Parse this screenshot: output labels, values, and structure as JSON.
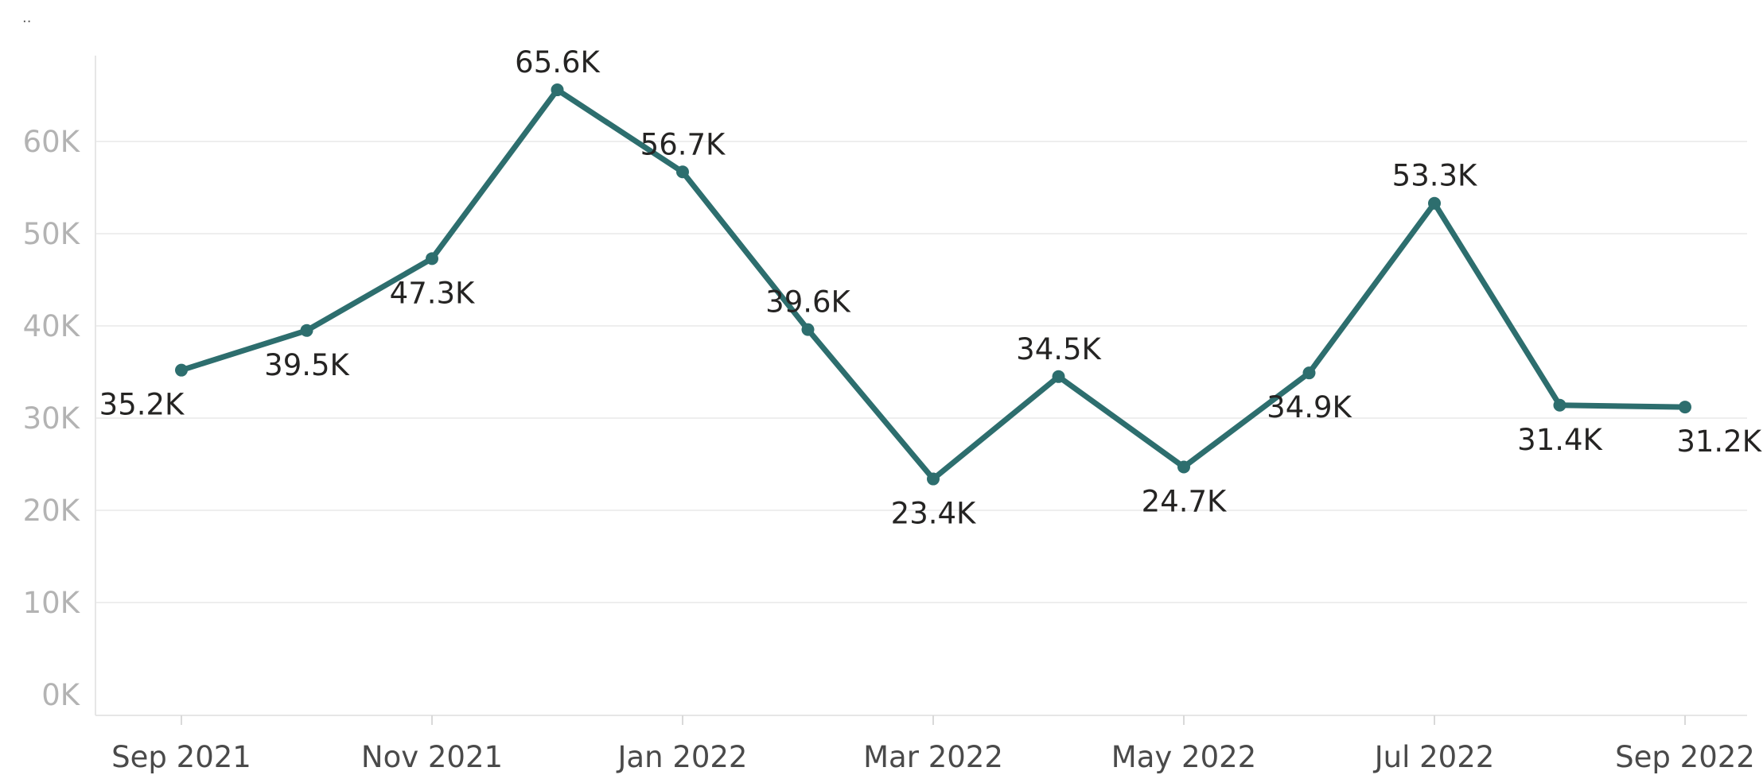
{
  "header": {
    "more_options_label": ".."
  },
  "chart_data": {
    "type": "line",
    "title": "",
    "xlabel": "",
    "ylabel": "",
    "x": [
      "2021-09",
      "2021-10",
      "2021-11",
      "2021-12",
      "2022-01",
      "2022-02",
      "2022-03",
      "2022-04",
      "2022-05",
      "2022-06",
      "2022-07",
      "2022-08",
      "2022-09"
    ],
    "x_tick_labels": [
      "Sep 2021",
      "Nov 2021",
      "Jan 2022",
      "Mar 2022",
      "May 2022",
      "Jul 2022",
      "Sep 2022"
    ],
    "x_tick_values": [
      "2021-09",
      "2021-11",
      "2022-01",
      "2022-03",
      "2022-05",
      "2022-07",
      "2022-09"
    ],
    "series": [
      {
        "values": [
          35200,
          39500,
          47300,
          65600,
          56700,
          39600,
          23400,
          34500,
          24700,
          34900,
          53300,
          31400,
          31200
        ],
        "data_labels": [
          "35.2K",
          "39.5K",
          "47.3K",
          "65.6K",
          "56.7K",
          "39.6K",
          "23.4K",
          "34.5K",
          "24.7K",
          "34.9K",
          "53.3K",
          "31.4K",
          "31.2K"
        ],
        "label_placement": [
          "below",
          "below",
          "below",
          "above",
          "above",
          "above",
          "below",
          "above",
          "below",
          "below",
          "above",
          "below",
          "below"
        ],
        "color": "#2d6e6e"
      }
    ],
    "y_ticks": [
      0,
      10000,
      20000,
      30000,
      40000,
      50000,
      60000
    ],
    "y_tick_labels": [
      "0K",
      "10K",
      "20K",
      "30K",
      "40K",
      "50K",
      "60K"
    ],
    "ylim": [
      0,
      70000
    ],
    "grid": true,
    "legend": "none",
    "marker": "circle",
    "colors": {
      "line": "#2d6e6e",
      "grid": "#eeeeee",
      "y_tick": "#b3b3b3",
      "x_tick": "#4a4a4a",
      "label": "#252423"
    }
  }
}
